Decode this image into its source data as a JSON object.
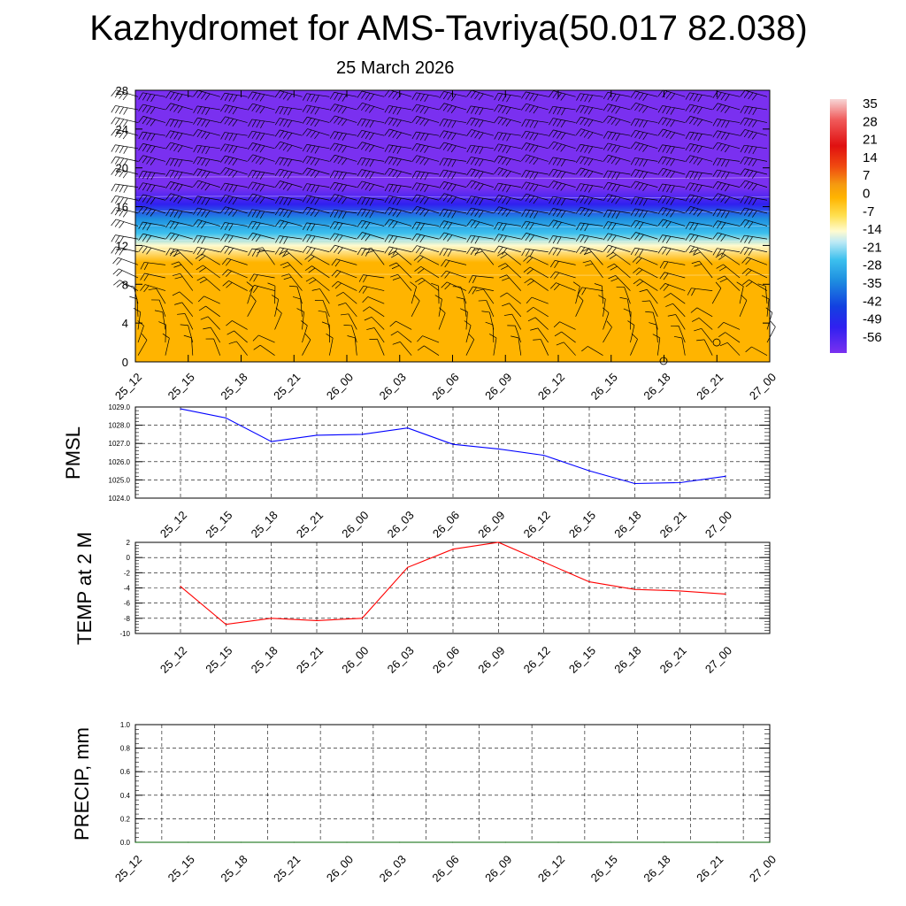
{
  "title": "Kazhydromet for AMS-Tavriya(50.017 82.038)",
  "subtitle": "25 March 2026",
  "chart_data": [
    {
      "type": "heatmap",
      "name": "vertical temperature cross-section with wind barbs",
      "x_tick_labels": [
        "25_12",
        "25_15",
        "25_18",
        "25_21",
        "26_00",
        "26_03",
        "26_06",
        "26_09",
        "26_12",
        "26_15",
        "26_18",
        "26_21",
        "27_00"
      ],
      "y_ticks": [
        0,
        4,
        8,
        12,
        16,
        20,
        24,
        28
      ],
      "ylim": [
        0,
        28
      ],
      "bands": [
        {
          "y_from": 0,
          "y_to": 9,
          "value": 2
        },
        {
          "y_from": 9,
          "y_to": 11.5,
          "value": -3
        },
        {
          "y_from": 11.5,
          "y_to": 12.5,
          "value": -10
        },
        {
          "y_from": 12.5,
          "y_to": 14,
          "value": -24
        },
        {
          "y_from": 14,
          "y_to": 15.5,
          "value": -34
        },
        {
          "y_from": 15.5,
          "y_to": 17,
          "value": -48
        },
        {
          "y_from": 17,
          "y_to": 19,
          "value": -55
        },
        {
          "y_from": 19,
          "y_to": 28,
          "value": -58
        }
      ],
      "colorbar": {
        "labels": [
          "35",
          "28",
          "21",
          "14",
          "7",
          "0",
          "-7",
          "-14",
          "-21",
          "-28",
          "-35",
          "-42",
          "-49",
          "-56"
        ],
        "stops": [
          {
            "value": 38,
            "color": "#f7d6d6"
          },
          {
            "value": 30,
            "color": "#f05a5a"
          },
          {
            "value": 20,
            "color": "#e01010"
          },
          {
            "value": 12,
            "color": "#f04a10"
          },
          {
            "value": 5,
            "color": "#f59a10"
          },
          {
            "value": 0,
            "color": "#ffb400"
          },
          {
            "value": -7,
            "color": "#ffe050"
          },
          {
            "value": -13,
            "color": "#fffbd0"
          },
          {
            "value": -17,
            "color": "#bfeaf5"
          },
          {
            "value": -24,
            "color": "#3cc0ee"
          },
          {
            "value": -32,
            "color": "#1e8ee0"
          },
          {
            "value": -42,
            "color": "#1240e0"
          },
          {
            "value": -50,
            "color": "#3020f0"
          },
          {
            "value": -60,
            "color": "#7a30f0"
          }
        ]
      }
    },
    {
      "type": "line",
      "ylabel": "PMSL",
      "x_tick_labels": [
        "25_12",
        "25_15",
        "25_18",
        "25_21",
        "26_00",
        "26_03",
        "26_06",
        "26_09",
        "26_12",
        "26_15",
        "26_18",
        "26_21",
        "27_00"
      ],
      "y_tick_labels": [
        "1029.0",
        "1028.0",
        "1027.0",
        "1026.0",
        "1025.0",
        "1024.0"
      ],
      "ylim": [
        1024,
        1029
      ],
      "color": "#0000ff",
      "values": [
        1028.9,
        1028.4,
        1027.1,
        1027.45,
        1027.5,
        1027.85,
        1026.95,
        1026.7,
        1026.35,
        1025.5,
        1024.8,
        1024.85,
        1025.2
      ]
    },
    {
      "type": "line",
      "ylabel": "TEMP at 2 M",
      "x_tick_labels": [
        "25_12",
        "25_15",
        "25_18",
        "25_21",
        "26_00",
        "26_03",
        "26_06",
        "26_09",
        "26_12",
        "26_15",
        "26_18",
        "26_21",
        "27_00"
      ],
      "y_tick_labels": [
        "2",
        "0",
        "-2",
        "-4",
        "-6",
        "-8",
        "-10"
      ],
      "ylim": [
        -10,
        2
      ],
      "color": "#ff0000",
      "values": [
        -3.8,
        -8.8,
        -8.0,
        -8.3,
        -8.0,
        -1.3,
        1.1,
        2.0,
        -0.6,
        -3.2,
        -4.2,
        -4.4,
        -4.8
      ]
    },
    {
      "type": "line",
      "ylabel": "PRECIP, mm",
      "x_tick_labels": [
        "25_12",
        "25_15",
        "25_18",
        "25_21",
        "26_00",
        "26_03",
        "26_06",
        "26_09",
        "26_12",
        "26_15",
        "26_18",
        "26_21",
        "27_00"
      ],
      "y_tick_labels": [
        "1.0",
        "0.8",
        "0.6",
        "0.4",
        "0.2",
        "0.0"
      ],
      "ylim": [
        0,
        1
      ],
      "color": "#006400",
      "values": [
        0,
        0,
        0,
        0,
        0,
        0,
        0,
        0,
        0,
        0,
        0,
        0,
        0
      ]
    }
  ]
}
